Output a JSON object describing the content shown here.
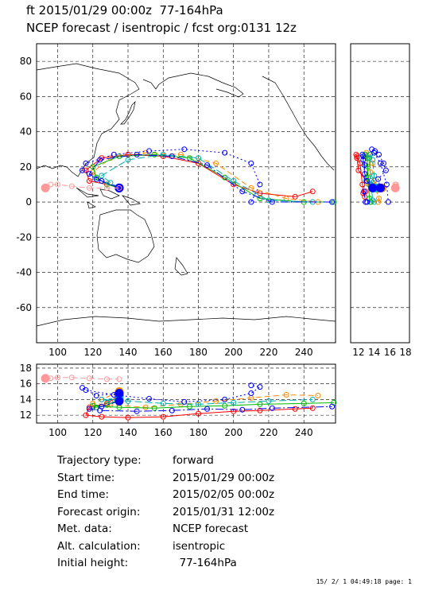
{
  "header": {
    "title_line1": "ft 2015/01/29 00:00z  77-164hPa",
    "title_line2": "NCEP forecast / isentropic / fcst org:0131 12z"
  },
  "chart_data": {
    "type": "scatter",
    "map_panel": {
      "xlim": [
        88,
        258
      ],
      "ylim": [
        -80,
        90
      ],
      "x_ticks": [
        100,
        120,
        140,
        160,
        180,
        200,
        220,
        240
      ],
      "y_ticks": [
        -60,
        -40,
        -20,
        0,
        20,
        40,
        60,
        80
      ],
      "grid": true
    },
    "side_panel": {
      "x_ticks": [
        12,
        14,
        16,
        18
      ],
      "xlim": [
        11,
        18.5
      ],
      "ylim": [
        -80,
        90
      ]
    },
    "bottom_panel": {
      "xlim": [
        88,
        258
      ],
      "ylim": [
        11,
        18.5
      ],
      "y_ticks": [
        12,
        14,
        16,
        18
      ],
      "x_ticks": [
        100,
        120,
        140,
        160,
        180,
        200,
        220,
        240
      ]
    },
    "series": [
      {
        "color": "#ff0000",
        "dash": "",
        "lon": [
          135,
          128,
          118,
          116,
          125,
          140,
          160,
          180,
          200,
          215,
          235,
          245
        ],
        "lat": [
          8,
          10,
          12,
          18,
          25,
          27,
          26,
          22,
          10,
          5,
          3,
          6
        ],
        "height": [
          14.5,
          13.5,
          13.0,
          12.0,
          11.8,
          11.7,
          11.8,
          12.2,
          12.5,
          12.6,
          12.8,
          12.9
        ]
      },
      {
        "color": "#ff8c00",
        "dash": "7,4",
        "lon": [
          135,
          125,
          120,
          130,
          150,
          170,
          190,
          210,
          230,
          248
        ],
        "lat": [
          8,
          12,
          17,
          25,
          28,
          27,
          22,
          8,
          2,
          0
        ],
        "height": [
          15.0,
          14.0,
          13.5,
          13.3,
          13.0,
          13.4,
          13.8,
          14.2,
          14.6,
          14.5
        ]
      },
      {
        "color": "#00bb00",
        "dash": "",
        "lon": [
          135,
          128,
          122,
          120,
          135,
          155,
          175,
          195,
          215,
          240,
          257
        ],
        "lat": [
          8,
          10,
          14,
          20,
          26,
          27,
          25,
          14,
          2,
          0,
          0
        ],
        "height": [
          14.0,
          13.3,
          13.0,
          13.2,
          13.0,
          12.9,
          13.1,
          13.2,
          13.4,
          13.5,
          13.6
        ]
      },
      {
        "color": "#00b0b0",
        "dash": "9,4",
        "lon": [
          135,
          130,
          125,
          140,
          160,
          180,
          200,
          220,
          245
        ],
        "lat": [
          8,
          11,
          15,
          24,
          27,
          25,
          12,
          1,
          0
        ],
        "height": [
          14.3,
          13.8,
          14.0,
          13.8,
          13.5,
          13.4,
          13.6,
          13.8,
          14.0
        ]
      },
      {
        "color": "#0000ff",
        "dash": "10,3,2,3",
        "lon": [
          135,
          125,
          118,
          124,
          145,
          165,
          185,
          205,
          222,
          256
        ],
        "lat": [
          8,
          12,
          16,
          24,
          27,
          26,
          21,
          6,
          0,
          0
        ],
        "height": [
          13.8,
          13.1,
          12.8,
          12.6,
          12.5,
          12.6,
          12.8,
          12.7,
          12.9,
          13.1
        ]
      },
      {
        "color": "#0000ff",
        "dash": "2,3",
        "lon": [
          135,
          122,
          114,
          116,
          132,
          152,
          172,
          195,
          210,
          215,
          210
        ],
        "lat": [
          8,
          13,
          18,
          22,
          27,
          29,
          30,
          28,
          22,
          10,
          0
        ],
        "height": [
          14.8,
          14.5,
          15.5,
          15.2,
          14.6,
          14.1,
          13.7,
          14.0,
          14.8,
          15.6,
          15.8
        ]
      },
      {
        "color": "#ff9999",
        "dash": "7,4",
        "lon": [
          93,
          96,
          100,
          108,
          118,
          128,
          135
        ],
        "lat": [
          8,
          10,
          10,
          9,
          8,
          8,
          8
        ],
        "height": [
          16.7,
          16.7,
          16.8,
          16.8,
          16.7,
          16.6,
          16.6
        ]
      }
    ]
  },
  "info": {
    "rows": [
      {
        "label": "Trajectory type:",
        "value": "forward"
      },
      {
        "label": "Start time:",
        "value": "2015/01/29 00:00z"
      },
      {
        "label": "End time:",
        "value": "2015/02/05 00:00z"
      },
      {
        "label": "Forecast origin:",
        "value": "2015/01/31 12:00z"
      },
      {
        "label": "Met. data:",
        "value": "NCEP forecast"
      },
      {
        "label": "Alt. calculation:",
        "value": "isentropic"
      },
      {
        "label": "Initial height:",
        "value": "  77-164hPa"
      }
    ]
  },
  "footer": "15/ 2/ 1 04:49:18 page: 1"
}
